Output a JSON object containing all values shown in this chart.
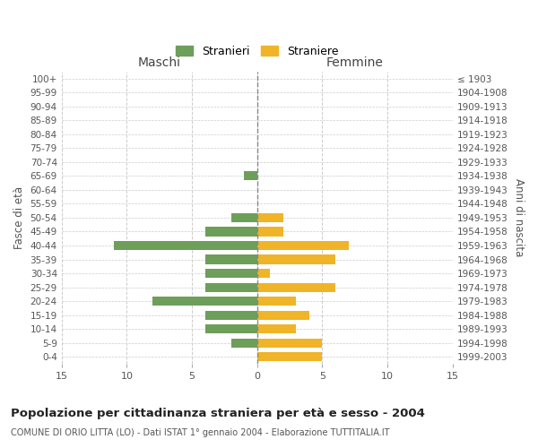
{
  "age_groups": [
    "100+",
    "95-99",
    "90-94",
    "85-89",
    "80-84",
    "75-79",
    "70-74",
    "65-69",
    "60-64",
    "55-59",
    "50-54",
    "45-49",
    "40-44",
    "35-39",
    "30-34",
    "25-29",
    "20-24",
    "15-19",
    "10-14",
    "5-9",
    "0-4"
  ],
  "birth_years": [
    "≤ 1903",
    "1904-1908",
    "1909-1913",
    "1914-1918",
    "1919-1923",
    "1924-1928",
    "1929-1933",
    "1934-1938",
    "1939-1943",
    "1944-1948",
    "1949-1953",
    "1954-1958",
    "1959-1963",
    "1964-1968",
    "1969-1973",
    "1974-1978",
    "1979-1983",
    "1984-1988",
    "1989-1993",
    "1994-1998",
    "1999-2003"
  ],
  "maschi": [
    0,
    0,
    0,
    0,
    0,
    0,
    0,
    1,
    0,
    0,
    2,
    4,
    11,
    4,
    4,
    4,
    8,
    4,
    4,
    2,
    0
  ],
  "femmine": [
    0,
    0,
    0,
    0,
    0,
    0,
    0,
    0,
    0,
    0,
    2,
    2,
    7,
    6,
    1,
    6,
    3,
    4,
    3,
    5,
    5
  ],
  "maschi_color": "#6d9e5a",
  "femmine_color": "#f0b429",
  "background_color": "#ffffff",
  "grid_color": "#cccccc",
  "title": "Popolazione per cittadinanza straniera per età e sesso - 2004",
  "subtitle": "COMUNE DI ORIO LITTA (LO) - Dati ISTAT 1° gennaio 2004 - Elaborazione TUTTITALIA.IT",
  "xlabel_left": "Maschi",
  "xlabel_right": "Femmine",
  "ylabel_left": "Fasce di età",
  "ylabel_right": "Anni di nascita",
  "legend_stranieri": "Stranieri",
  "legend_straniere": "Straniere",
  "xlim": 15
}
